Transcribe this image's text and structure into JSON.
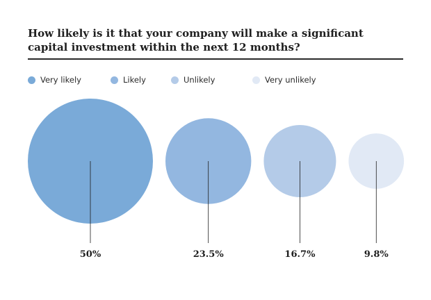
{
  "title": "How likely is it that your company will make a significant capital investment within the next 12 months?",
  "chart_data": {
    "type": "bubble",
    "title": "How likely is it that your company will make a significant capital investment within the next 12 months?",
    "categories": [
      "Very likely",
      "Likely",
      "Unlikely",
      "Very unlikely"
    ],
    "values": [
      50,
      23.5,
      16.7,
      9.8
    ],
    "labels": [
      "50%",
      "23.5%",
      "16.7%",
      "9.8%"
    ],
    "unit": "%",
    "colors": [
      "#7aaad8",
      "#93b7e0",
      "#b4cbe8",
      "#e1e9f5"
    ],
    "legend_position": "top",
    "grid": false
  }
}
